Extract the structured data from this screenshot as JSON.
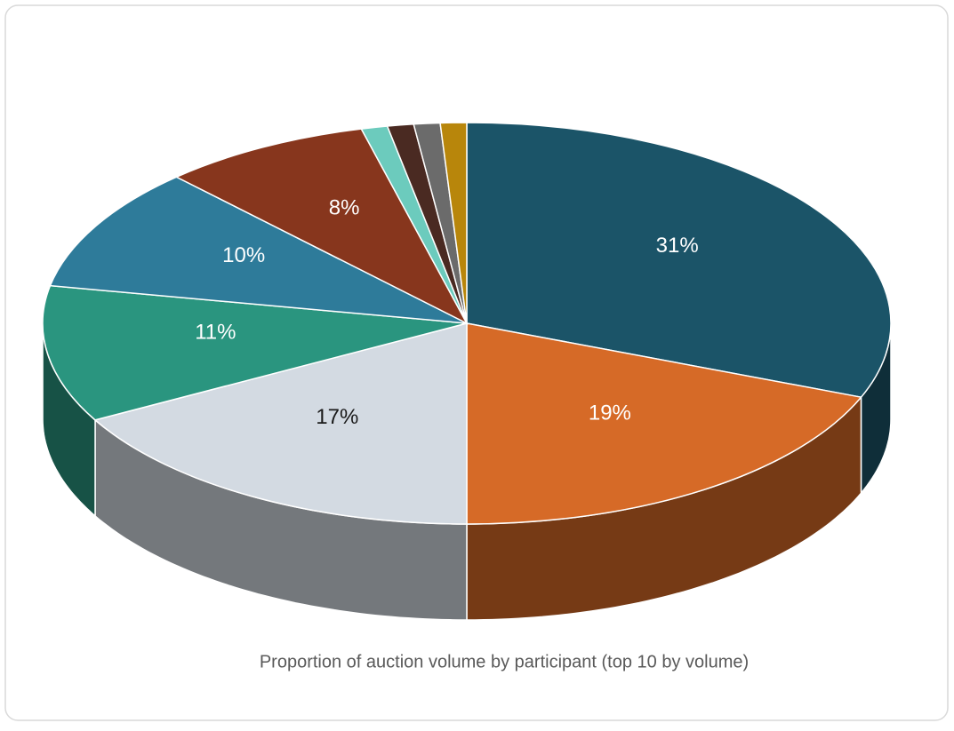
{
  "chart_data": {
    "type": "pie3d",
    "title": "Proportion of auction volume by participant (top 10 by volume)",
    "values": [
      31,
      19,
      17,
      11,
      10,
      8,
      1,
      1,
      1,
      1
    ],
    "value_labels": [
      "31%",
      "19%",
      "17%",
      "11%",
      "10%",
      "8%",
      null,
      null,
      null,
      null
    ],
    "colors": [
      "#1b5468",
      "#d66a27",
      "#d3dae2",
      "#2a957f",
      "#2e7b9a",
      "#87361d",
      "#6ccbbd",
      "#4a2a22",
      "#6b6b6b",
      "#b8860b"
    ],
    "label_colors": [
      "#ffffff",
      "#ffffff",
      "#1a1a1a",
      "#ffffff",
      "#ffffff",
      "#ffffff",
      null,
      null,
      null,
      null
    ]
  }
}
